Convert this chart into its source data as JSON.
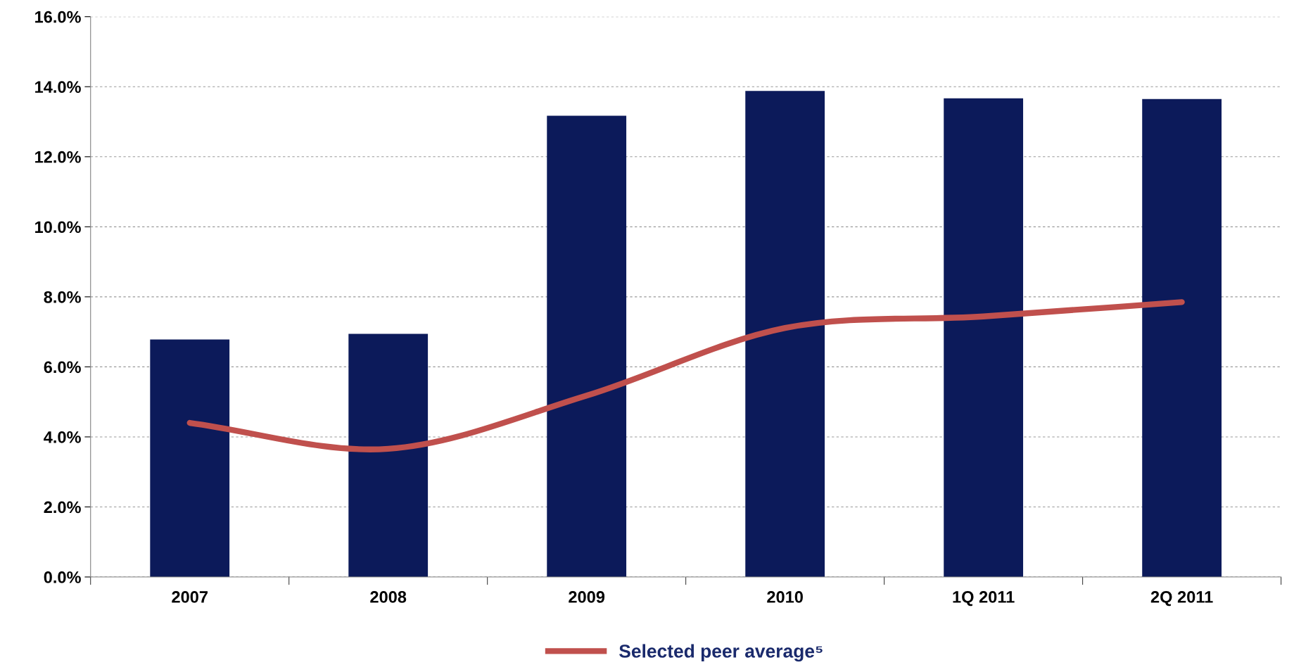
{
  "chart_data": {
    "type": "bar",
    "categories": [
      "2007",
      "2008",
      "2009",
      "2010",
      "1Q 2011",
      "2Q 2011"
    ],
    "series": [
      {
        "color": "#0c1a5a",
        "values": [
          6.78,
          6.94,
          13.17,
          13.88,
          13.67,
          13.65
        ]
      },
      {
        "type": "line",
        "name": "Selected peer average⁵",
        "color": "#c0504d",
        "values": [
          4.4,
          3.66,
          5.18,
          7.11,
          7.44,
          7.85
        ]
      }
    ],
    "ylim": [
      0,
      16
    ],
    "yticks": [
      {
        "value": 0,
        "label": "0.0%"
      },
      {
        "value": 2,
        "label": "2.0%"
      },
      {
        "value": 4,
        "label": "4.0%"
      },
      {
        "value": 6,
        "label": "6.0%"
      },
      {
        "value": 8,
        "label": "8.0%"
      },
      {
        "value": 10,
        "label": "10.0%"
      },
      {
        "value": 12,
        "label": "12.0%"
      },
      {
        "value": 14,
        "label": "14.0%"
      },
      {
        "value": 16,
        "label": "16.0%"
      }
    ],
    "grid": "y",
    "legend": "bottom",
    "marker": "none",
    "line_style": "solid"
  }
}
